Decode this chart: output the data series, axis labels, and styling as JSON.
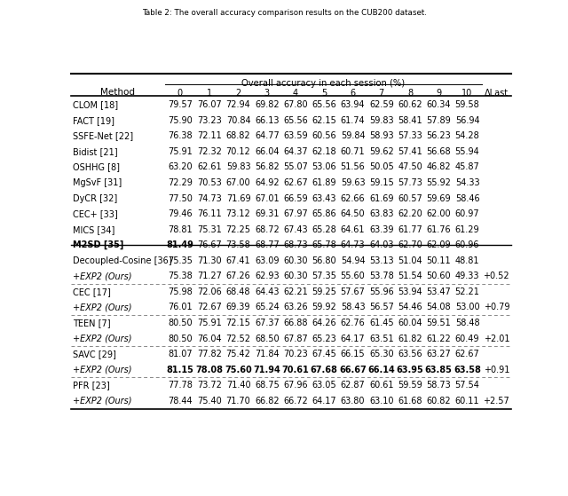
{
  "title": "Table 2: The overall accuracy comparison results on the CUB200 dataset.",
  "col_headers": [
    "Method",
    "0",
    "1",
    "2",
    "3",
    "4",
    "5",
    "6",
    "7",
    "8",
    "9",
    "10",
    "ΔLast"
  ],
  "group_header": "Overall accuracy in each session (%)",
  "rows": [
    {
      "method": "CLOM [18]",
      "vals": [
        "79.57",
        "76.07",
        "72.94",
        "69.82",
        "67.80",
        "65.56",
        "63.94",
        "62.59",
        "60.62",
        "60.34",
        "59.58",
        ""
      ],
      "bold_method": false,
      "italic": false,
      "bold_vals": []
    },
    {
      "method": "FACT [19]",
      "vals": [
        "75.90",
        "73.23",
        "70.84",
        "66.13",
        "65.56",
        "62.15",
        "61.74",
        "59.83",
        "58.41",
        "57.89",
        "56.94",
        ""
      ],
      "bold_method": false,
      "italic": false,
      "bold_vals": []
    },
    {
      "method": "SSFE-Net [22]",
      "vals": [
        "76.38",
        "72.11",
        "68.82",
        "64.77",
        "63.59",
        "60.56",
        "59.84",
        "58.93",
        "57.33",
        "56.23",
        "54.28",
        ""
      ],
      "bold_method": false,
      "italic": false,
      "bold_vals": []
    },
    {
      "method": "Bidist [21]",
      "vals": [
        "75.91",
        "72.32",
        "70.12",
        "66.04",
        "64.37",
        "62.18",
        "60.71",
        "59.62",
        "57.41",
        "56.68",
        "55.94",
        ""
      ],
      "bold_method": false,
      "italic": false,
      "bold_vals": []
    },
    {
      "method": "OSHHG [8]",
      "vals": [
        "63.20",
        "62.61",
        "59.83",
        "56.82",
        "55.07",
        "53.06",
        "51.56",
        "50.05",
        "47.50",
        "46.82",
        "45.87",
        ""
      ],
      "bold_method": false,
      "italic": false,
      "bold_vals": []
    },
    {
      "method": "MgSvF [31]",
      "vals": [
        "72.29",
        "70.53",
        "67.00",
        "64.92",
        "62.67",
        "61.89",
        "59.63",
        "59.15",
        "57.73",
        "55.92",
        "54.33",
        ""
      ],
      "bold_method": false,
      "italic": false,
      "bold_vals": []
    },
    {
      "method": "DyCR [32]",
      "vals": [
        "77.50",
        "74.73",
        "71.69",
        "67.01",
        "66.59",
        "63.43",
        "62.66",
        "61.69",
        "60.57",
        "59.69",
        "58.46",
        ""
      ],
      "bold_method": false,
      "italic": false,
      "bold_vals": []
    },
    {
      "method": "CEC+ [33]",
      "vals": [
        "79.46",
        "76.11",
        "73.12",
        "69.31",
        "67.97",
        "65.86",
        "64.50",
        "63.83",
        "62.20",
        "62.00",
        "60.97",
        ""
      ],
      "bold_method": false,
      "italic": false,
      "bold_vals": []
    },
    {
      "method": "MICS [34]",
      "vals": [
        "78.81",
        "75.31",
        "72.25",
        "68.72",
        "67.43",
        "65.28",
        "64.61",
        "63.39",
        "61.77",
        "61.76",
        "61.29",
        ""
      ],
      "bold_method": false,
      "italic": false,
      "bold_vals": []
    },
    {
      "method": "M2SD [35]",
      "vals": [
        "81.49",
        "76.67",
        "73.58",
        "68.77",
        "68.73",
        "65.78",
        "64.73",
        "64.03",
        "62.70",
        "62.09",
        "60.96",
        ""
      ],
      "bold_method": true,
      "italic": false,
      "bold_vals": [
        0
      ]
    },
    {
      "method": "Decoupled-Cosine [36]",
      "vals": [
        "75.35",
        "71.30",
        "67.41",
        "63.09",
        "60.30",
        "56.80",
        "54.94",
        "53.13",
        "51.04",
        "50.11",
        "48.81",
        ""
      ],
      "bold_method": false,
      "italic": false,
      "bold_vals": [],
      "section_break_before": true
    },
    {
      "method": "+EXP2 (Ours)",
      "vals": [
        "75.38",
        "71.27",
        "67.26",
        "62.93",
        "60.30",
        "57.35",
        "55.60",
        "53.78",
        "51.54",
        "50.60",
        "49.33",
        "+0.52"
      ],
      "bold_method": false,
      "italic": true,
      "bold_vals": [],
      "dashed_below": true
    },
    {
      "method": "CEC [17]",
      "vals": [
        "75.98",
        "72.06",
        "68.48",
        "64.43",
        "62.21",
        "59.25",
        "57.67",
        "55.96",
        "53.94",
        "53.47",
        "52.21",
        ""
      ],
      "bold_method": false,
      "italic": false,
      "bold_vals": []
    },
    {
      "method": "+EXP2 (Ours)",
      "vals": [
        "76.01",
        "72.67",
        "69.39",
        "65.24",
        "63.26",
        "59.92",
        "58.43",
        "56.57",
        "54.46",
        "54.08",
        "53.00",
        "+0.79"
      ],
      "bold_method": false,
      "italic": true,
      "bold_vals": [],
      "dashed_below": true
    },
    {
      "method": "TEEN [7]",
      "vals": [
        "80.50",
        "75.91",
        "72.15",
        "67.37",
        "66.88",
        "64.26",
        "62.76",
        "61.45",
        "60.04",
        "59.51",
        "58.48",
        ""
      ],
      "bold_method": false,
      "italic": false,
      "bold_vals": []
    },
    {
      "method": "+EXP2 (Ours)",
      "vals": [
        "80.50",
        "76.04",
        "72.52",
        "68.50",
        "67.87",
        "65.23",
        "64.17",
        "63.51",
        "61.82",
        "61.22",
        "60.49",
        "+2.01"
      ],
      "bold_method": false,
      "italic": true,
      "bold_vals": [],
      "dashed_below": true
    },
    {
      "method": "SAVC [29]",
      "vals": [
        "81.07",
        "77.82",
        "75.42",
        "71.84",
        "70.23",
        "67.45",
        "66.15",
        "65.30",
        "63.56",
        "63.27",
        "62.67",
        ""
      ],
      "bold_method": false,
      "italic": false,
      "bold_vals": []
    },
    {
      "method": "+EXP2 (Ours)",
      "vals": [
        "81.15",
        "78.08",
        "75.60",
        "71.94",
        "70.61",
        "67.68",
        "66.67",
        "66.14",
        "63.95",
        "63.85",
        "63.58",
        "+0.91"
      ],
      "bold_method": false,
      "italic": true,
      "bold_vals": [
        0,
        1,
        2,
        3,
        4,
        5,
        6,
        7,
        8,
        9,
        10
      ],
      "dashed_below": true
    },
    {
      "method": "PFR [23]",
      "vals": [
        "77.78",
        "73.72",
        "71.40",
        "68.75",
        "67.96",
        "63.05",
        "62.87",
        "60.61",
        "59.59",
        "58.73",
        "57.54",
        ""
      ],
      "bold_method": false,
      "italic": false,
      "bold_vals": []
    },
    {
      "method": "+EXP2 (Ours)",
      "vals": [
        "78.44",
        "75.40",
        "71.70",
        "66.82",
        "66.72",
        "64.17",
        "63.80",
        "63.10",
        "61.68",
        "60.82",
        "60.11",
        "+2.57"
      ],
      "bold_method": false,
      "italic": true,
      "bold_vals": []
    }
  ],
  "bg_color": "#ffffff",
  "text_color": "#000000"
}
